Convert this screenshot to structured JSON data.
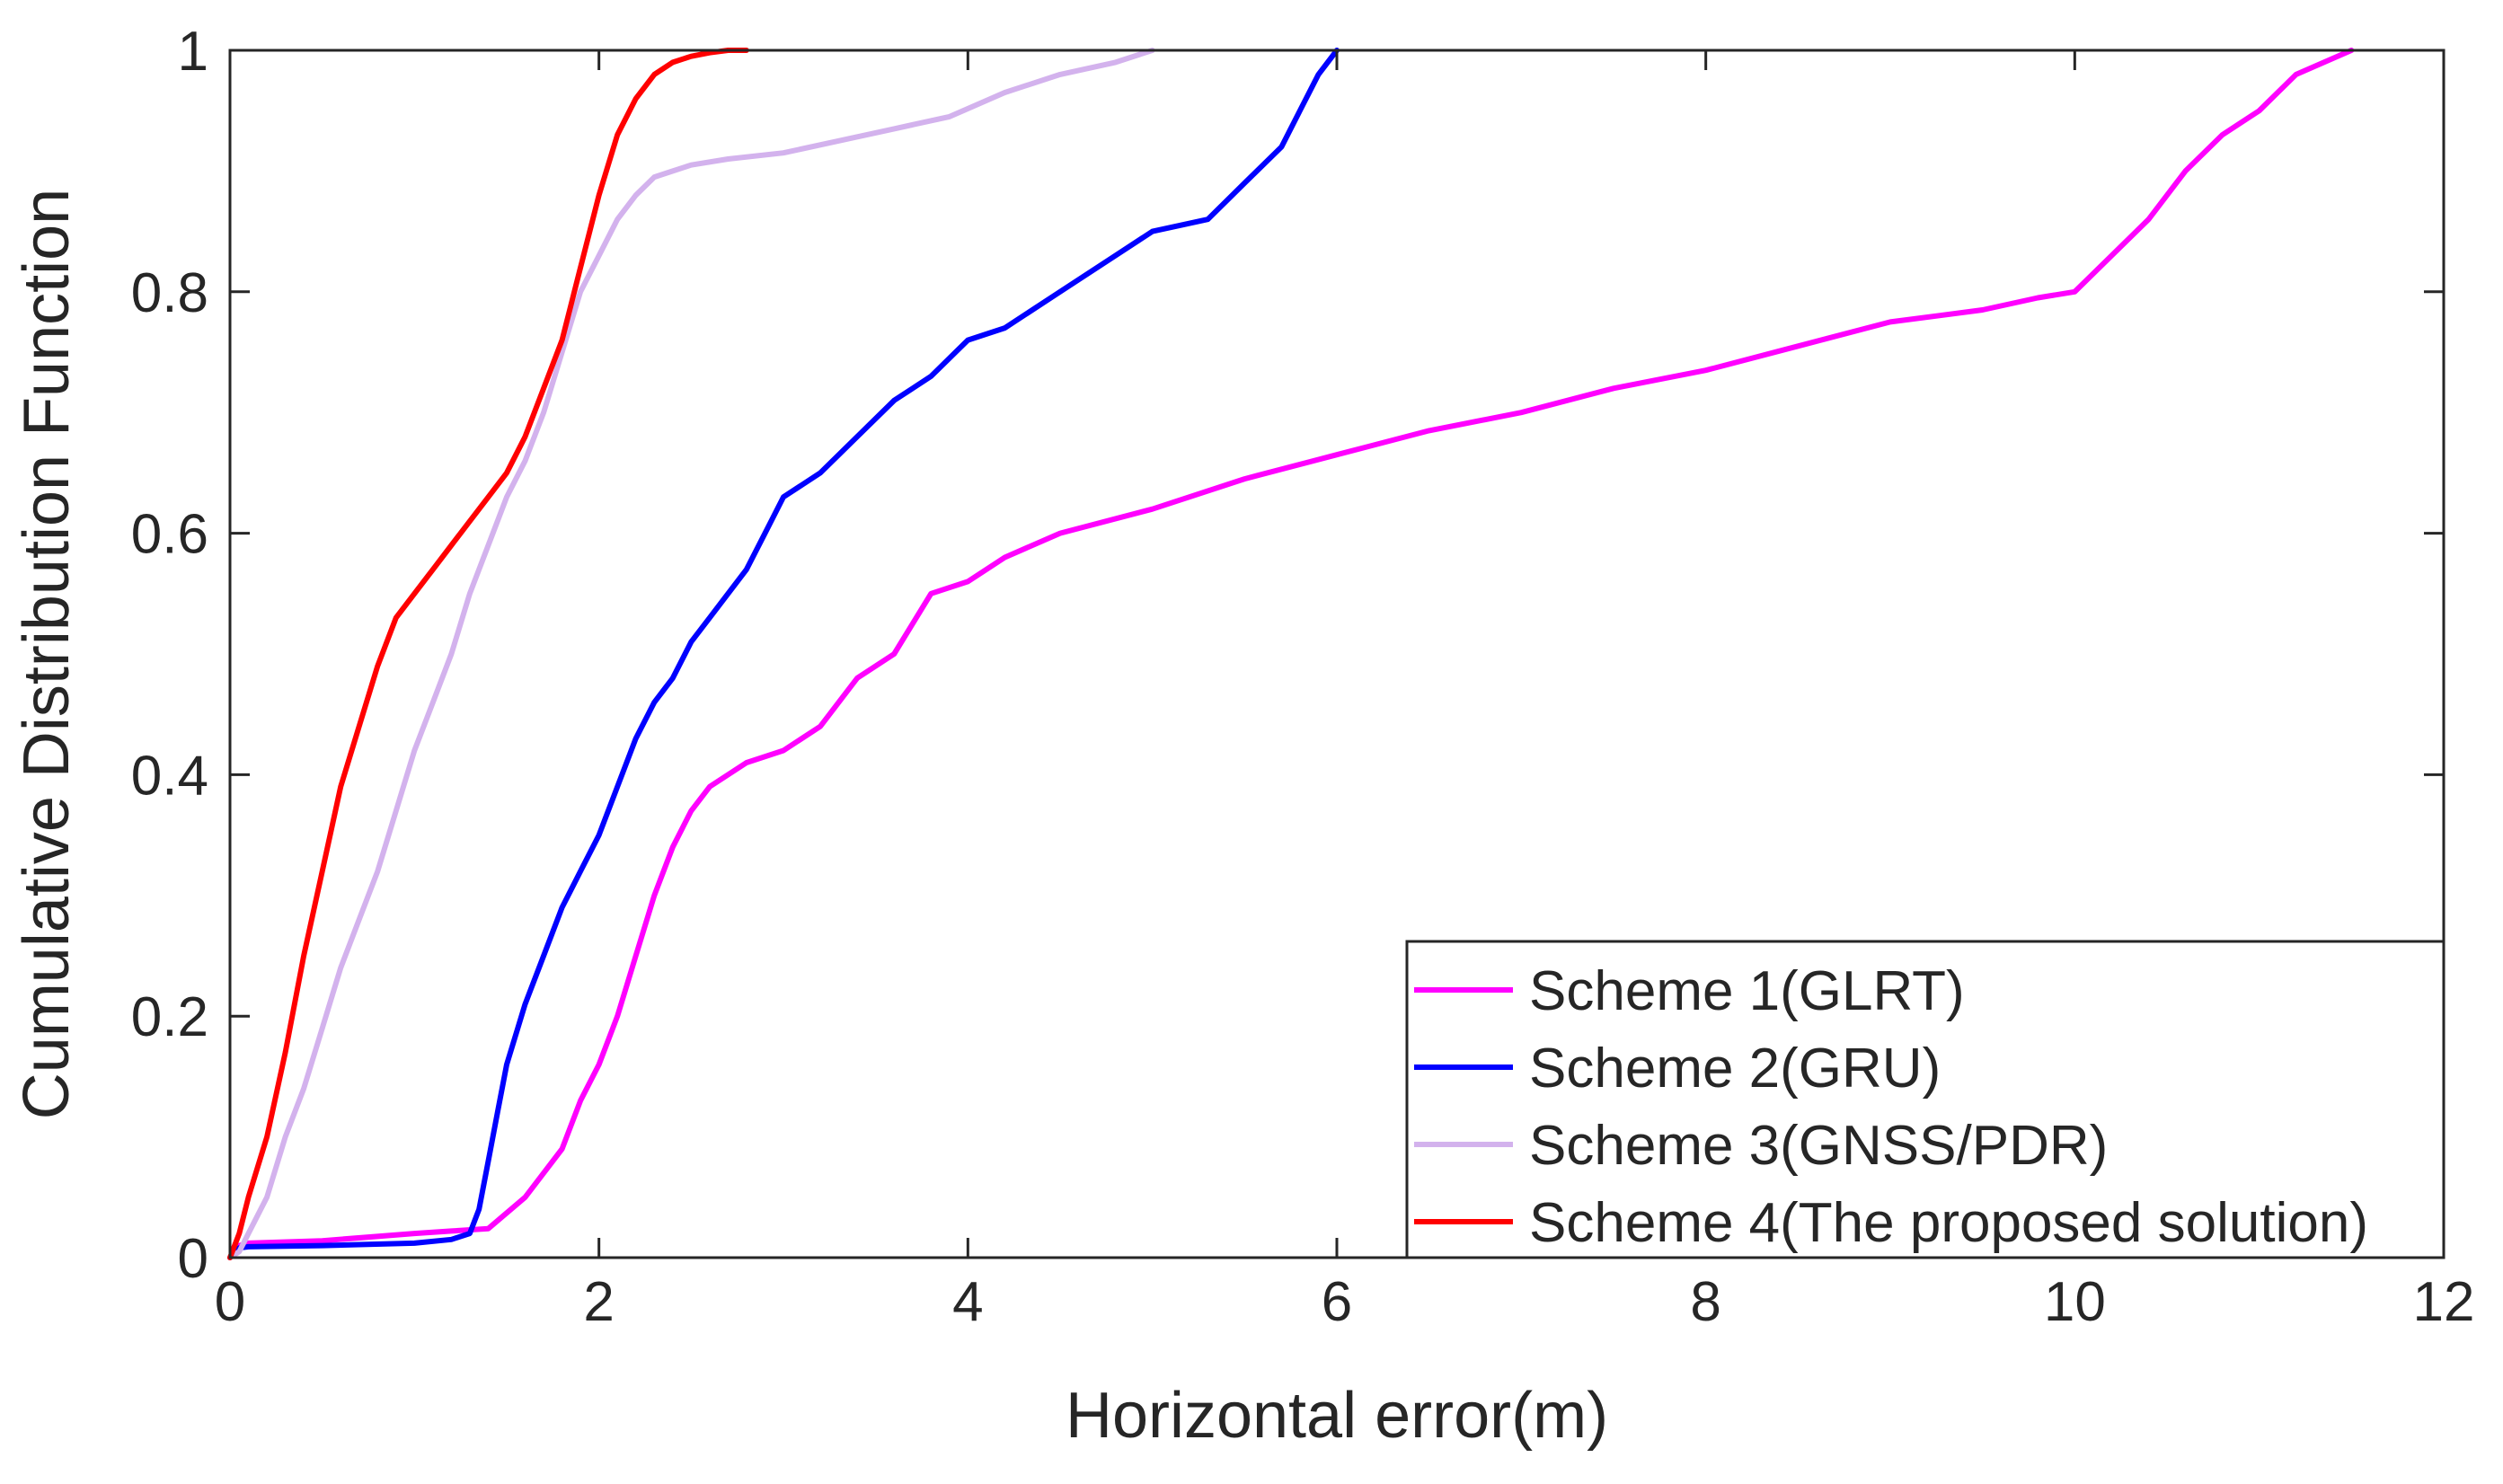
{
  "chart_data": {
    "type": "line",
    "title": "",
    "xlabel": "Horizontal error(m)",
    "ylabel": "Cumulative Distribution Function",
    "xlim": [
      0,
      12
    ],
    "ylim": [
      0,
      1
    ],
    "xticks": [
      "0",
      "2",
      "4",
      "6",
      "8",
      "10",
      "12"
    ],
    "yticks": [
      "0",
      "0.2",
      "0.4",
      "0.6",
      "0.8",
      "1"
    ],
    "grid": false,
    "legend_position": "bottom-right",
    "series": [
      {
        "name": "Scheme 1(GLRT)",
        "color": "#ff00ff",
        "x": [
          0,
          0.05,
          0.1,
          0.5,
          1.0,
          1.2,
          1.4,
          1.6,
          1.8,
          1.9,
          2.0,
          2.1,
          2.2,
          2.3,
          2.4,
          2.5,
          2.6,
          2.8,
          3.0,
          3.2,
          3.4,
          3.6,
          3.8,
          4.0,
          4.2,
          4.5,
          5.0,
          5.5,
          6.0,
          6.5,
          7.0,
          7.5,
          8.0,
          8.5,
          9.0,
          9.5,
          9.8,
          10.0,
          10.2,
          10.4,
          10.5,
          10.6,
          10.8,
          11.0,
          11.2,
          11.5
        ],
        "y": [
          0,
          0.01,
          0.012,
          0.014,
          0.02,
          0.022,
          0.024,
          0.05,
          0.09,
          0.13,
          0.16,
          0.2,
          0.25,
          0.3,
          0.34,
          0.37,
          0.39,
          0.41,
          0.42,
          0.44,
          0.48,
          0.5,
          0.55,
          0.56,
          0.58,
          0.6,
          0.62,
          0.645,
          0.665,
          0.685,
          0.7,
          0.72,
          0.735,
          0.755,
          0.775,
          0.785,
          0.795,
          0.8,
          0.83,
          0.86,
          0.88,
          0.9,
          0.93,
          0.95,
          0.98,
          1.0
        ]
      },
      {
        "name": "Scheme 2(GRU)",
        "color": "#0000ff",
        "x": [
          0,
          0.05,
          0.1,
          0.5,
          1.0,
          1.2,
          1.3,
          1.35,
          1.4,
          1.45,
          1.5,
          1.6,
          1.7,
          1.8,
          1.9,
          2.0,
          2.1,
          2.2,
          2.3,
          2.4,
          2.5,
          2.6,
          2.8,
          2.9,
          3.0,
          3.2,
          3.4,
          3.6,
          3.8,
          4.0,
          4.2,
          4.5,
          4.8,
          5.0,
          5.3,
          5.5,
          5.7,
          5.8,
          5.9,
          6.0
        ],
        "y": [
          0,
          0.008,
          0.009,
          0.01,
          0.012,
          0.015,
          0.02,
          0.04,
          0.08,
          0.12,
          0.16,
          0.21,
          0.25,
          0.29,
          0.32,
          0.35,
          0.39,
          0.43,
          0.46,
          0.48,
          0.51,
          0.53,
          0.57,
          0.6,
          0.63,
          0.65,
          0.68,
          0.71,
          0.73,
          0.76,
          0.77,
          0.8,
          0.83,
          0.85,
          0.86,
          0.89,
          0.92,
          0.95,
          0.98,
          1.0
        ]
      },
      {
        "name": "Scheme 3(GNSS/PDR)",
        "color": "#d3b2ed",
        "x": [
          0,
          0.05,
          0.1,
          0.2,
          0.3,
          0.4,
          0.5,
          0.6,
          0.7,
          0.8,
          0.9,
          1.0,
          1.1,
          1.2,
          1.3,
          1.4,
          1.5,
          1.6,
          1.7,
          1.8,
          1.9,
          2.0,
          2.1,
          2.2,
          2.3,
          2.4,
          2.5,
          2.7,
          3.0,
          3.3,
          3.6,
          3.9,
          4.2,
          4.5,
          4.8,
          5.0
        ],
        "y": [
          0,
          0.005,
          0.02,
          0.05,
          0.1,
          0.14,
          0.19,
          0.24,
          0.28,
          0.32,
          0.37,
          0.42,
          0.46,
          0.5,
          0.55,
          0.59,
          0.63,
          0.66,
          0.7,
          0.75,
          0.8,
          0.83,
          0.86,
          0.88,
          0.895,
          0.9,
          0.905,
          0.91,
          0.915,
          0.925,
          0.935,
          0.945,
          0.965,
          0.98,
          0.99,
          1.0
        ]
      },
      {
        "name": "Scheme 4(The proposed solution)",
        "color": "#ff0000",
        "x": [
          0,
          0.05,
          0.1,
          0.2,
          0.3,
          0.4,
          0.5,
          0.6,
          0.7,
          0.8,
          0.9,
          1.0,
          1.1,
          1.2,
          1.3,
          1.4,
          1.5,
          1.6,
          1.7,
          1.8,
          1.9,
          2.0,
          2.1,
          2.2,
          2.3,
          2.4,
          2.5,
          2.6,
          2.7,
          2.8
        ],
        "y": [
          0,
          0.02,
          0.05,
          0.1,
          0.17,
          0.25,
          0.32,
          0.39,
          0.44,
          0.49,
          0.53,
          0.55,
          0.57,
          0.59,
          0.61,
          0.63,
          0.65,
          0.68,
          0.72,
          0.76,
          0.82,
          0.88,
          0.93,
          0.96,
          0.98,
          0.99,
          0.995,
          0.998,
          1.0,
          1.0
        ]
      }
    ]
  }
}
